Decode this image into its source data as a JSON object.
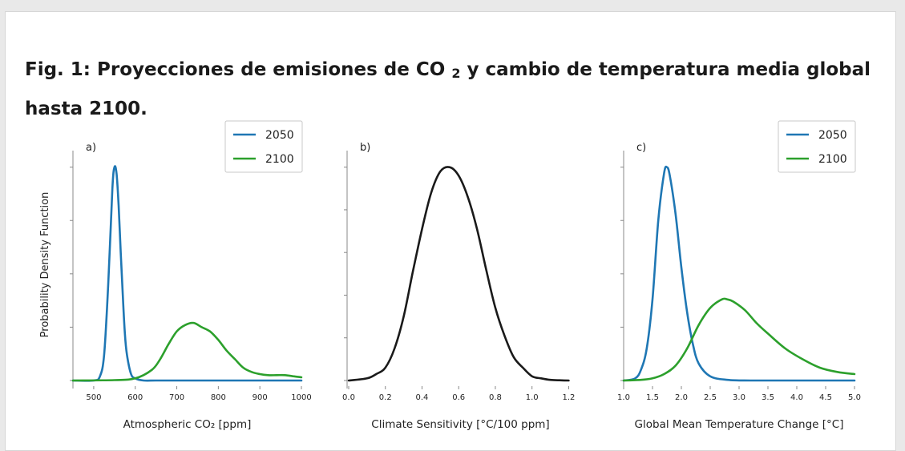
{
  "figure": {
    "title_before": "Fig. 1: Proyecciones de emisiones de CO",
    "title_sub": "2",
    "title_after": " y cambio de temperatura media global hasta 2100."
  },
  "chart_data": [
    {
      "type": "line",
      "panel_label": "a)",
      "xlabel": "Atmospheric CO₂ [ppm]",
      "ylabel": "Probability Density Function",
      "xlim": [
        450,
        1000
      ],
      "ylim": [
        0,
        1.04
      ],
      "xticks": [
        500,
        600,
        700,
        800,
        900,
        1000
      ],
      "yticks_unlabeled": [
        0.0,
        0.25,
        0.5,
        0.75,
        1.0
      ],
      "grid": false,
      "legend_position": "top-right",
      "series": [
        {
          "name": "2050",
          "color": "#1f77b4",
          "x": [
            450,
            500,
            515,
            525,
            535,
            545,
            550,
            555,
            560,
            565,
            570,
            575,
            580,
            590,
            600,
            620,
            650,
            700,
            800,
            900,
            1000
          ],
          "y": [
            0,
            0,
            0.02,
            0.12,
            0.45,
            0.9,
            1.0,
            0.97,
            0.82,
            0.6,
            0.4,
            0.22,
            0.12,
            0.03,
            0.01,
            0,
            0,
            0,
            0,
            0,
            0
          ]
        },
        {
          "name": "2100",
          "color": "#2ca02c",
          "x": [
            450,
            550,
            600,
            640,
            660,
            680,
            700,
            720,
            740,
            760,
            780,
            800,
            820,
            840,
            860,
            880,
            900,
            920,
            940,
            960,
            980,
            1000
          ],
          "y": [
            0,
            0.002,
            0.01,
            0.05,
            0.1,
            0.17,
            0.23,
            0.26,
            0.27,
            0.25,
            0.23,
            0.19,
            0.14,
            0.1,
            0.06,
            0.04,
            0.03,
            0.025,
            0.025,
            0.025,
            0.02,
            0.015
          ]
        }
      ]
    },
    {
      "type": "line",
      "panel_label": "b)",
      "xlabel": "Climate Sensitivity [°C/100 ppm]",
      "ylabel": "",
      "xlim": [
        0,
        1.22
      ],
      "ylim": [
        0,
        1.04
      ],
      "xticks": [
        0.0,
        0.2,
        0.4,
        0.6,
        0.8,
        1.0,
        1.2
      ],
      "yticks_unlabeled": [
        0.0,
        0.2,
        0.4,
        0.6,
        0.8,
        1.0
      ],
      "grid": false,
      "series": [
        {
          "name": "",
          "color": "#1a1a1a",
          "x": [
            0,
            0.1,
            0.15,
            0.2,
            0.25,
            0.3,
            0.35,
            0.4,
            0.45,
            0.5,
            0.55,
            0.6,
            0.65,
            0.7,
            0.75,
            0.8,
            0.85,
            0.9,
            0.95,
            1.0,
            1.05,
            1.1,
            1.15,
            1.2
          ],
          "y": [
            0,
            0.01,
            0.03,
            0.06,
            0.15,
            0.3,
            0.51,
            0.71,
            0.88,
            0.98,
            1.0,
            0.96,
            0.86,
            0.71,
            0.52,
            0.34,
            0.21,
            0.11,
            0.06,
            0.02,
            0.01,
            0.003,
            0.001,
            0
          ]
        }
      ]
    },
    {
      "type": "line",
      "panel_label": "c)",
      "xlabel": "Global Mean Temperature Change [°C]",
      "ylabel": "",
      "xlim": [
        1.0,
        5.0
      ],
      "ylim": [
        0,
        1.04
      ],
      "xticks": [
        1.0,
        1.5,
        2.0,
        2.5,
        3.0,
        3.5,
        4.0,
        4.5,
        5.0
      ],
      "yticks_unlabeled": [
        0.0,
        0.25,
        0.5,
        0.75,
        1.0
      ],
      "grid": false,
      "legend_position": "top-right",
      "series": [
        {
          "name": "2050",
          "color": "#1f77b4",
          "x": [
            1.0,
            1.2,
            1.3,
            1.4,
            1.5,
            1.6,
            1.7,
            1.75,
            1.8,
            1.9,
            2.0,
            2.1,
            2.2,
            2.3,
            2.5,
            2.8,
            3.2,
            4.0,
            5.0
          ],
          "y": [
            0,
            0.01,
            0.05,
            0.15,
            0.38,
            0.75,
            0.97,
            1.0,
            0.96,
            0.78,
            0.53,
            0.32,
            0.17,
            0.08,
            0.02,
            0.003,
            0,
            0,
            0
          ]
        },
        {
          "name": "2100",
          "color": "#2ca02c",
          "x": [
            1.0,
            1.3,
            1.5,
            1.7,
            1.9,
            2.1,
            2.3,
            2.5,
            2.7,
            2.8,
            2.9,
            3.1,
            3.3,
            3.5,
            3.8,
            4.1,
            4.4,
            4.7,
            5.0
          ],
          "y": [
            0,
            0.003,
            0.01,
            0.03,
            0.07,
            0.15,
            0.26,
            0.34,
            0.38,
            0.38,
            0.37,
            0.33,
            0.27,
            0.22,
            0.15,
            0.1,
            0.06,
            0.04,
            0.03
          ]
        }
      ]
    }
  ]
}
